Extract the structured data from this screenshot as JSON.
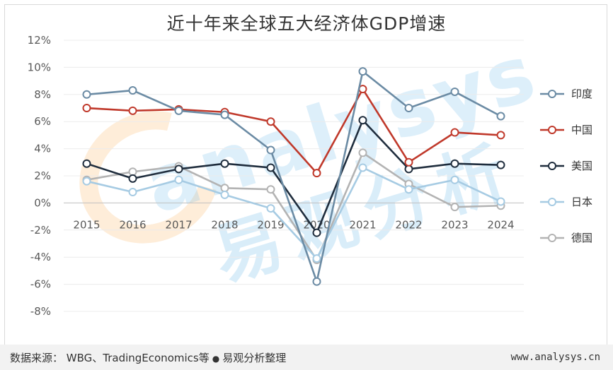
{
  "page": {
    "title": "近十年来全球五大经济体GDP增速",
    "source": "数据来源：  WBG、TradingEconomics等",
    "source_suffix": "易观分析整理",
    "website": "www.analysys.cn",
    "watermark_text": "analysys",
    "watermark_cn": "易观分析"
  },
  "chart_data": {
    "type": "line",
    "title": "近十年来全球五大经济体GDP增速",
    "x": [
      "2015",
      "2016",
      "2017",
      "2018",
      "2019",
      "2020",
      "2021",
      "2022",
      "2023",
      "2024"
    ],
    "ylim": [
      -8,
      12
    ],
    "ytick_step": 2,
    "y_unit": "%",
    "grid": true,
    "legend_placement": "right",
    "series": [
      {
        "name": "印度",
        "color": "#6b8ba4",
        "values": [
          8.0,
          8.3,
          6.8,
          6.5,
          3.9,
          -5.8,
          9.7,
          7.0,
          8.2,
          6.4
        ]
      },
      {
        "name": "中国",
        "color": "#c0392b",
        "values": [
          7.0,
          6.8,
          6.9,
          6.7,
          6.0,
          2.2,
          8.4,
          3.0,
          5.2,
          5.0
        ]
      },
      {
        "name": "美国",
        "color": "#1f2d3d",
        "values": [
          2.9,
          1.8,
          2.5,
          2.9,
          2.6,
          -2.2,
          6.1,
          2.5,
          2.9,
          2.8
        ]
      },
      {
        "name": "日本",
        "color": "#a6cbe3",
        "values": [
          1.6,
          0.8,
          1.7,
          0.6,
          -0.4,
          -4.1,
          2.6,
          1.0,
          1.7,
          0.1
        ]
      },
      {
        "name": "德国",
        "color": "#b3b3b3",
        "values": [
          1.7,
          2.3,
          2.7,
          1.1,
          1.0,
          -4.2,
          3.7,
          1.4,
          -0.3,
          -0.2
        ]
      }
    ]
  }
}
